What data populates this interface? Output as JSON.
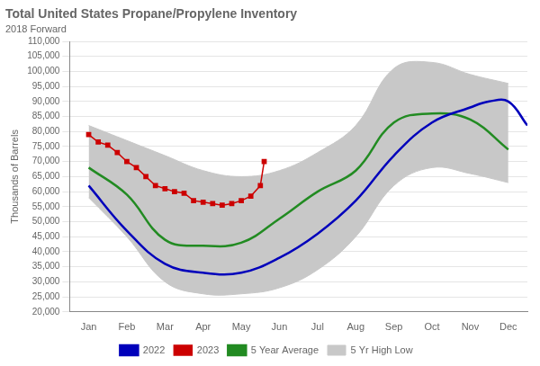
{
  "chart_data": {
    "type": "line",
    "title": "Total United States Propane/Propylene Inventory",
    "subtitle": "2018 Forward",
    "ylabel": "Thousands of Barrels",
    "xlim": [
      -0.5,
      11.5
    ],
    "xticks": [
      {
        "value": 0,
        "label": "Jan"
      },
      {
        "value": 1,
        "label": "Feb"
      },
      {
        "value": 2,
        "label": "Mar"
      },
      {
        "value": 3,
        "label": "Apr"
      },
      {
        "value": 4,
        "label": "May"
      },
      {
        "value": 5,
        "label": "Jun"
      },
      {
        "value": 6,
        "label": "Jul"
      },
      {
        "value": 7,
        "label": "Aug"
      },
      {
        "value": 8,
        "label": "Sep"
      },
      {
        "value": 9,
        "label": "Oct"
      },
      {
        "value": 10,
        "label": "Nov"
      },
      {
        "value": 11,
        "label": "Dec"
      }
    ],
    "ylim": [
      20000,
      110000
    ],
    "yticks": [
      {
        "value": 20000,
        "label": "20,000"
      },
      {
        "value": 25000,
        "label": "25,000"
      },
      {
        "value": 30000,
        "label": "30,000"
      },
      {
        "value": 35000,
        "label": "35,000"
      },
      {
        "value": 40000,
        "label": "40,000"
      },
      {
        "value": 45000,
        "label": "45,000"
      },
      {
        "value": 50000,
        "label": "50,000"
      },
      {
        "value": 55000,
        "label": "55,000"
      },
      {
        "value": 60000,
        "label": "60,000"
      },
      {
        "value": 65000,
        "label": "65,000"
      },
      {
        "value": 70000,
        "label": "70,000"
      },
      {
        "value": 75000,
        "label": "75,000"
      },
      {
        "value": 80000,
        "label": "80,000"
      },
      {
        "value": 85000,
        "label": "85,000"
      },
      {
        "value": 90000,
        "label": "90,000"
      },
      {
        "value": 95000,
        "label": "95,000"
      },
      {
        "value": 100000,
        "label": "100,000"
      },
      {
        "value": 105000,
        "label": "105,000"
      },
      {
        "value": 110000,
        "label": "110,000"
      }
    ],
    "grid": "y",
    "legend": "bottom",
    "series": [
      {
        "name": "5 Yr High Low",
        "type": "area",
        "color": "#c8c8c8",
        "line_style": "smooth",
        "x": [
          0,
          1,
          2,
          3,
          4,
          5,
          6,
          7,
          8,
          9,
          10,
          11
        ],
        "high": [
          82000,
          77000,
          72000,
          67000,
          65000,
          67000,
          73000,
          82000,
          101000,
          103000,
          99000,
          96000
        ],
        "low": [
          58000,
          45000,
          30000,
          26000,
          26000,
          28000,
          34000,
          45000,
          62000,
          68000,
          66000,
          63000
        ]
      },
      {
        "name": "5 Year Average",
        "type": "line",
        "color": "#228B22",
        "line_style": "smooth",
        "x": [
          0,
          1,
          2,
          3,
          4,
          5,
          6,
          7,
          8,
          9,
          10,
          11
        ],
        "values": [
          68000,
          59000,
          44000,
          42000,
          43000,
          51000,
          60000,
          67000,
          83000,
          86000,
          84000,
          74000
        ]
      },
      {
        "name": "2023",
        "type": "line",
        "color": "#cc0000",
        "line_style": "solid",
        "marker": "square",
        "x": [
          0.0,
          0.25,
          0.5,
          0.75,
          1.0,
          1.25,
          1.5,
          1.75,
          2.0,
          2.25,
          2.5,
          2.75,
          3.0,
          3.25,
          3.5,
          3.75,
          4.0,
          4.25,
          4.5,
          4.6
        ],
        "values": [
          79000,
          76500,
          75500,
          73000,
          70000,
          68000,
          65000,
          62000,
          61000,
          60000,
          59500,
          57000,
          56500,
          56000,
          55500,
          56000,
          57000,
          58500,
          62000,
          70000
        ]
      },
      {
        "name": "2022",
        "type": "line",
        "color": "#0000bb",
        "line_style": "smooth",
        "x": [
          0,
          1,
          2,
          3,
          4,
          5,
          6,
          7,
          8,
          9,
          10,
          10.5,
          11,
          11.5
        ],
        "values": [
          62000,
          47000,
          36000,
          33000,
          33000,
          38000,
          46000,
          57000,
          72000,
          83000,
          88000,
          90000,
          90000,
          82000
        ]
      }
    ]
  }
}
